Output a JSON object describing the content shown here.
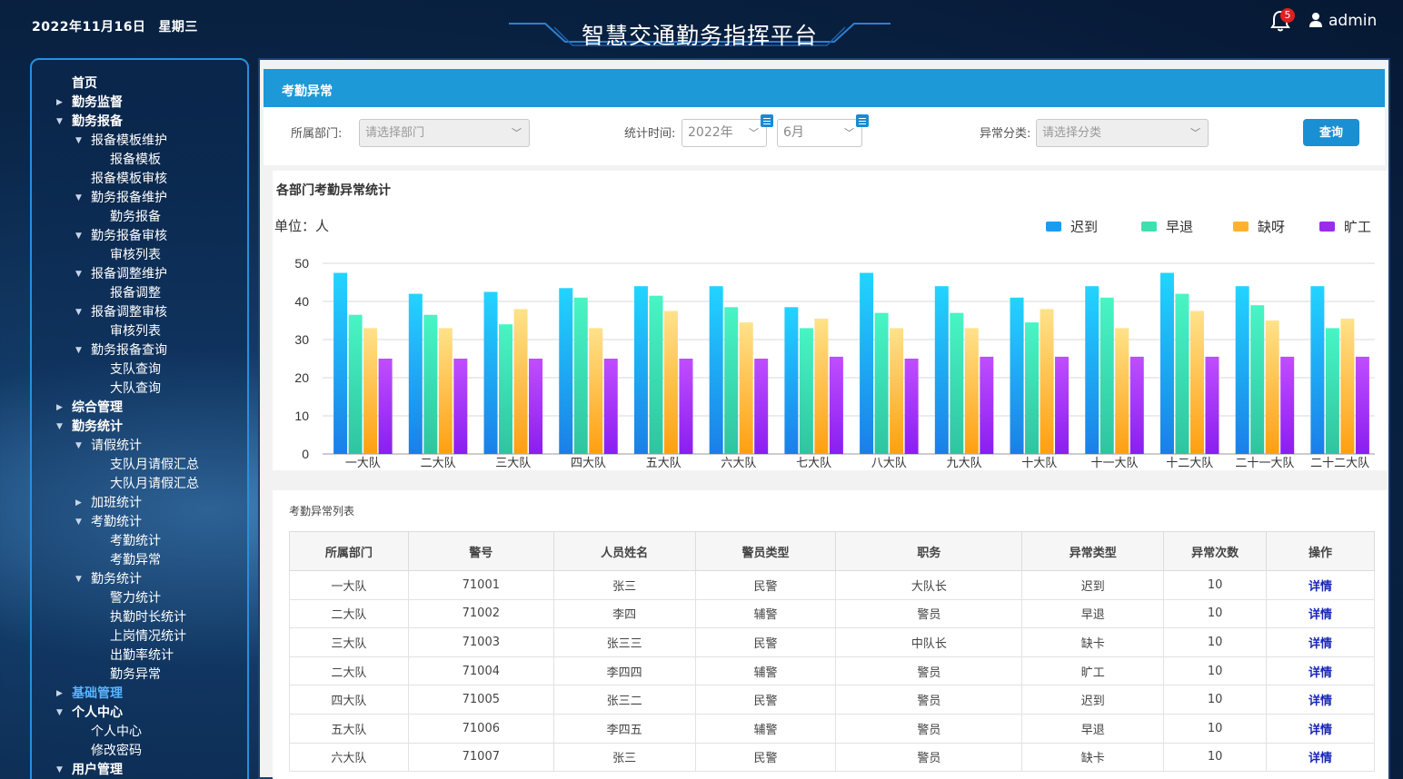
{
  "header": {
    "date": "2022年11月16日",
    "weekday": "星期三",
    "title": "智慧交通勤务指挥平台",
    "notification_count": "5",
    "username": "admin"
  },
  "sidebar": {
    "items": [
      {
        "label": "首页",
        "level": 1,
        "arrow": ""
      },
      {
        "label": "勤务监督",
        "level": 1,
        "arrow": "▶"
      },
      {
        "label": "勤务报备",
        "level": 1,
        "arrow": "▼"
      },
      {
        "label": "报备模板维护",
        "level": 2,
        "arrow": "▼"
      },
      {
        "label": "报备模板",
        "level": 3,
        "arrow": ""
      },
      {
        "label": "报备模板审核",
        "level": 2,
        "arrow": ""
      },
      {
        "label": "勤务报备维护",
        "level": 2,
        "arrow": "▼"
      },
      {
        "label": "勤务报备",
        "level": 3,
        "arrow": ""
      },
      {
        "label": "勤务报备审核",
        "level": 2,
        "arrow": "▼"
      },
      {
        "label": "审核列表",
        "level": 3,
        "arrow": ""
      },
      {
        "label": "报备调整维护",
        "level": 2,
        "arrow": "▼"
      },
      {
        "label": "报备调整",
        "level": 3,
        "arrow": ""
      },
      {
        "label": "报备调整审核",
        "level": 2,
        "arrow": "▼"
      },
      {
        "label": "审核列表",
        "level": 3,
        "arrow": ""
      },
      {
        "label": "勤务报备查询",
        "level": 2,
        "arrow": "▼"
      },
      {
        "label": "支队查询",
        "level": 3,
        "arrow": ""
      },
      {
        "label": "大队查询",
        "level": 3,
        "arrow": ""
      },
      {
        "label": "综合管理",
        "level": 1,
        "arrow": "▶"
      },
      {
        "label": "勤务统计",
        "level": 1,
        "arrow": "▼"
      },
      {
        "label": "请假统计",
        "level": 2,
        "arrow": "▼"
      },
      {
        "label": "支队月请假汇总",
        "level": 3,
        "arrow": ""
      },
      {
        "label": "大队月请假汇总",
        "level": 3,
        "arrow": ""
      },
      {
        "label": "加班统计",
        "level": 2,
        "arrow": "▶"
      },
      {
        "label": "考勤统计",
        "level": 2,
        "arrow": "▼"
      },
      {
        "label": "考勤统计",
        "level": 3,
        "arrow": ""
      },
      {
        "label": "考勤异常",
        "level": 3,
        "arrow": ""
      },
      {
        "label": "勤务统计",
        "level": 2,
        "arrow": "▼"
      },
      {
        "label": "警力统计",
        "level": 3,
        "arrow": ""
      },
      {
        "label": "执勤时长统计",
        "level": 3,
        "arrow": ""
      },
      {
        "label": "上岗情况统计",
        "level": 3,
        "arrow": ""
      },
      {
        "label": "出勤率统计",
        "level": 3,
        "arrow": ""
      },
      {
        "label": "勤务异常",
        "level": 3,
        "arrow": ""
      },
      {
        "label": "基础管理",
        "level": 1,
        "arrow": "▶",
        "active": true
      },
      {
        "label": "个人中心",
        "level": 1,
        "arrow": "▼"
      },
      {
        "label": "个人中心",
        "level": 2,
        "arrow": ""
      },
      {
        "label": "修改密码",
        "level": 2,
        "arrow": ""
      },
      {
        "label": "用户管理",
        "level": 1,
        "arrow": "▼"
      }
    ]
  },
  "page": {
    "tab_title": "考勤异常",
    "filters": {
      "dept_label": "所属部门:",
      "dept_placeholder": "请选择部门",
      "time_label": "统计时间:",
      "year_value": "2022年",
      "month_value": "6月",
      "type_label": "异常分类:",
      "type_placeholder": "请选择分类",
      "query_button": "查询"
    }
  },
  "chart_data": {
    "type": "bar",
    "title": "各部门考勤异常统计",
    "unit_label": "单位：人",
    "ylim": [
      0,
      50
    ],
    "yticks": [
      "0",
      "10",
      "20",
      "30",
      "40",
      "50"
    ],
    "grid": true,
    "legend_position": "top-right",
    "categories": [
      "一大队",
      "二大队",
      "三大队",
      "四大队",
      "五大队",
      "六大队",
      "七大队",
      "八大队",
      "九大队",
      "十大队",
      "十一大队",
      "十二大队",
      "二十一大队",
      "二十二大队"
    ],
    "series": [
      {
        "name": "迟到",
        "color": "#1b9cf0",
        "values": [
          47.5,
          42,
          42.5,
          43.5,
          44,
          44,
          38.5,
          47.5,
          44,
          41,
          44,
          47.5,
          44,
          44
        ]
      },
      {
        "name": "早退",
        "color": "#3fe0b0",
        "values": [
          36.5,
          36.5,
          34,
          41,
          41.5,
          38.5,
          33,
          37,
          37,
          34.5,
          41,
          42,
          39,
          33
        ]
      },
      {
        "name": "缺呀",
        "color": "#ffb22e",
        "values": [
          33,
          33,
          38,
          33,
          37.5,
          34.5,
          35.5,
          33,
          33,
          38,
          33,
          37.5,
          35,
          35.5
        ]
      },
      {
        "name": "旷工",
        "color": "#9a2cf0",
        "values": [
          25,
          25,
          25,
          25,
          25,
          25,
          25.5,
          25,
          25.5,
          25.5,
          25.5,
          25.5,
          25.5,
          25.5
        ]
      }
    ]
  },
  "table": {
    "title": "考勤异常列表",
    "columns": [
      "所属部门",
      "警号",
      "人员姓名",
      "警员类型",
      "职务",
      "异常类型",
      "异常次数",
      "操作"
    ],
    "rows": [
      [
        "一大队",
        "71001",
        "张三",
        "民警",
        "大队长",
        "迟到",
        "10",
        "详情"
      ],
      [
        "二大队",
        "71002",
        "李四",
        "辅警",
        "警员",
        "早退",
        "10",
        "详情"
      ],
      [
        "三大队",
        "71003",
        "张三三",
        "民警",
        "中队长",
        "缺卡",
        "10",
        "详情"
      ],
      [
        "二大队",
        "71004",
        "李四四",
        "辅警",
        "警员",
        "旷工",
        "10",
        "详情"
      ],
      [
        "四大队",
        "71005",
        "张三二",
        "民警",
        "警员",
        "迟到",
        "10",
        "详情"
      ],
      [
        "五大队",
        "71006",
        "李四五",
        "辅警",
        "警员",
        "早退",
        "10",
        "详情"
      ],
      [
        "六大队",
        "71007",
        "张三",
        "民警",
        "警员",
        "缺卡",
        "10",
        "详情"
      ]
    ]
  }
}
